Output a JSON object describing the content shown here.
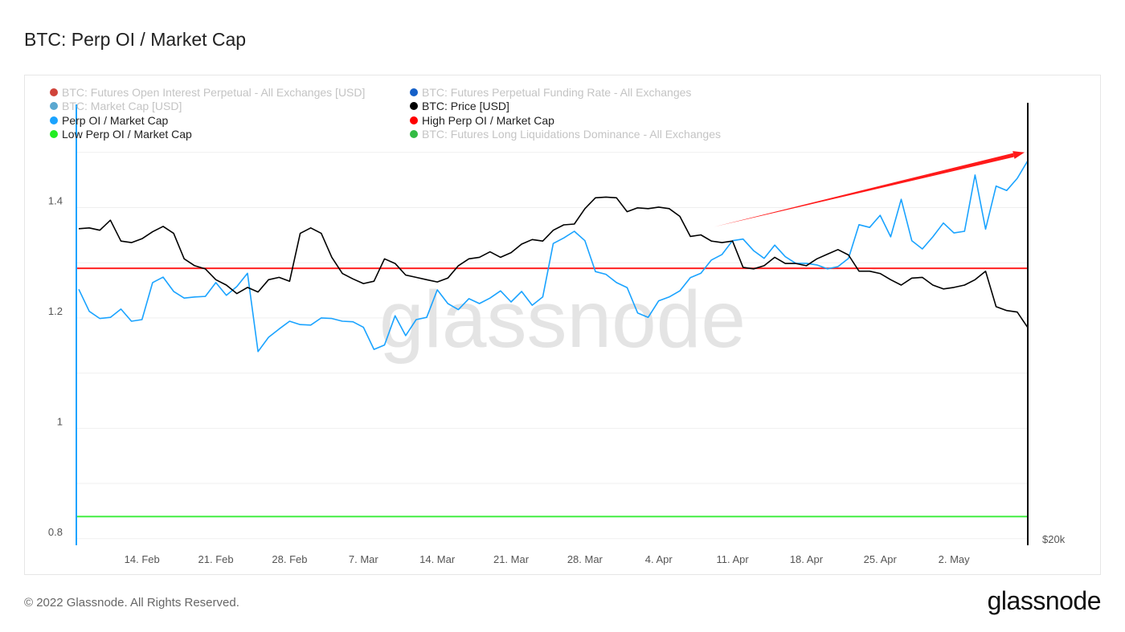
{
  "title": "BTC: Perp OI / Market Cap",
  "footer": "© 2022 Glassnode. All Rights Reserved.",
  "logo": "glassnode",
  "watermark": "glassnode",
  "legend": [
    {
      "label": "BTC: Futures Open Interest Perpetual - All Exchanges [USD]",
      "color": "#d0433a",
      "active": false
    },
    {
      "label": "BTC: Futures Perpetual Funding Rate - All Exchanges",
      "color": "#1560c8",
      "active": false
    },
    {
      "label": "BTC: Market Cap [USD]",
      "color": "#5aa8d0",
      "active": false
    },
    {
      "label": "BTC: Price [USD]",
      "color": "#000000",
      "active": true
    },
    {
      "label": "Perp OI / Market Cap",
      "color": "#1aa3ff",
      "active": true
    },
    {
      "label": "High Perp OI / Market Cap",
      "color": "#ff0000",
      "active": true
    },
    {
      "label": "Low Perp OI / Market Cap",
      "color": "#22ee22",
      "active": true
    },
    {
      "label": "BTC: Futures Long Liquidations Dominance - All Exchanges",
      "color": "#33bb44",
      "active": false
    }
  ],
  "chart_data": {
    "type": "line",
    "title": "BTC: Perp OI / Market Cap",
    "grid": true,
    "legend_placement": "top-left",
    "y_left": {
      "ylim": [
        0.788,
        1.587
      ],
      "ticks": [
        0.8,
        1,
        1.2,
        1.4
      ],
      "tick_labels": [
        "0.8",
        "1",
        "1.2",
        "1.4"
      ]
    },
    "y_right": {
      "tick_labels": [
        "$20k"
      ],
      "scale": "linear",
      "ylim": [
        2300,
        59400
      ]
    },
    "x_ticks": [
      {
        "date": "2022-02-14",
        "label": "14. Feb"
      },
      {
        "date": "2022-02-21",
        "label": "21. Feb"
      },
      {
        "date": "2022-02-28",
        "label": "28. Feb"
      },
      {
        "date": "2022-03-07",
        "label": "7. Mar"
      },
      {
        "date": "2022-03-14",
        "label": "14. Mar"
      },
      {
        "date": "2022-03-21",
        "label": "21. Mar"
      },
      {
        "date": "2022-03-28",
        "label": "28. Mar"
      },
      {
        "date": "2022-04-04",
        "label": "4. Apr"
      },
      {
        "date": "2022-04-11",
        "label": "11. Apr"
      },
      {
        "date": "2022-04-18",
        "label": "18. Apr"
      },
      {
        "date": "2022-04-25",
        "label": "25. Apr"
      },
      {
        "date": "2022-05-02",
        "label": "2. May"
      }
    ],
    "x": [
      "2022-02-08",
      "2022-02-09",
      "2022-02-10",
      "2022-02-11",
      "2022-02-12",
      "2022-02-13",
      "2022-02-14",
      "2022-02-15",
      "2022-02-16",
      "2022-02-17",
      "2022-02-18",
      "2022-02-19",
      "2022-02-20",
      "2022-02-21",
      "2022-02-22",
      "2022-02-23",
      "2022-02-24",
      "2022-02-25",
      "2022-02-26",
      "2022-02-27",
      "2022-02-28",
      "2022-03-01",
      "2022-03-02",
      "2022-03-03",
      "2022-03-04",
      "2022-03-05",
      "2022-03-06",
      "2022-03-07",
      "2022-03-08",
      "2022-03-09",
      "2022-03-10",
      "2022-03-11",
      "2022-03-12",
      "2022-03-13",
      "2022-03-14",
      "2022-03-15",
      "2022-03-16",
      "2022-03-17",
      "2022-03-18",
      "2022-03-19",
      "2022-03-20",
      "2022-03-21",
      "2022-03-22",
      "2022-03-23",
      "2022-03-24",
      "2022-03-25",
      "2022-03-26",
      "2022-03-27",
      "2022-03-28",
      "2022-03-29",
      "2022-03-30",
      "2022-03-31",
      "2022-04-01",
      "2022-04-02",
      "2022-04-03",
      "2022-04-04",
      "2022-04-05",
      "2022-04-06",
      "2022-04-07",
      "2022-04-08",
      "2022-04-09",
      "2022-04-10",
      "2022-04-11",
      "2022-04-12",
      "2022-04-13",
      "2022-04-14",
      "2022-04-15",
      "2022-04-16",
      "2022-04-17",
      "2022-04-18",
      "2022-04-19",
      "2022-04-20",
      "2022-04-21",
      "2022-04-22",
      "2022-04-23",
      "2022-04-24",
      "2022-04-25",
      "2022-04-26",
      "2022-04-27",
      "2022-04-28",
      "2022-04-29",
      "2022-04-30",
      "2022-05-01",
      "2022-05-02",
      "2022-05-03",
      "2022-05-04",
      "2022-05-05",
      "2022-05-06",
      "2022-05-07",
      "2022-05-08",
      "2022-05-09"
    ],
    "series": [
      {
        "name": "Perp OI / Market Cap",
        "axis": "left",
        "color": "#1aa3ff",
        "values": [
          1.252,
          1.212,
          1.199,
          1.201,
          1.216,
          1.194,
          1.197,
          1.264,
          1.274,
          1.248,
          1.236,
          1.238,
          1.239,
          1.264,
          1.241,
          1.257,
          1.281,
          1.139,
          1.165,
          1.18,
          1.194,
          1.188,
          1.187,
          1.2,
          1.199,
          1.194,
          1.193,
          1.183,
          1.143,
          1.151,
          1.204,
          1.168,
          1.197,
          1.201,
          1.251,
          1.226,
          1.215,
          1.235,
          1.226,
          1.236,
          1.249,
          1.229,
          1.248,
          1.223,
          1.238,
          1.335,
          1.345,
          1.357,
          1.34,
          1.284,
          1.279,
          1.264,
          1.255,
          1.209,
          1.201,
          1.231,
          1.238,
          1.249,
          1.273,
          1.281,
          1.305,
          1.315,
          1.34,
          1.343,
          1.322,
          1.308,
          1.332,
          1.311,
          1.299,
          1.299,
          1.296,
          1.289,
          1.293,
          1.308,
          1.369,
          1.364,
          1.386,
          1.347,
          1.415,
          1.34,
          1.325,
          1.347,
          1.372,
          1.354,
          1.357,
          1.459,
          1.361,
          1.439,
          1.431,
          1.453,
          1.485
        ]
      },
      {
        "name": "BTC: Price [USD]",
        "axis": "right",
        "color": "#000000",
        "values": [
          43300,
          43400,
          43100,
          44400,
          41700,
          41500,
          42000,
          42900,
          43600,
          42700,
          39400,
          38500,
          38100,
          36700,
          36000,
          34900,
          35700,
          35100,
          36700,
          37000,
          36500,
          42700,
          43400,
          42700,
          39600,
          37500,
          36800,
          36200,
          36500,
          39400,
          38800,
          37300,
          37000,
          36700,
          36400,
          36900,
          38500,
          39400,
          39600,
          40300,
          39600,
          40200,
          41300,
          41900,
          41700,
          43100,
          43800,
          43900,
          45900,
          47300,
          47400,
          47300,
          45500,
          46000,
          45900,
          46100,
          45900,
          44900,
          42300,
          42500,
          41700,
          41500,
          41700,
          38300,
          38100,
          38500,
          39600,
          38800,
          38800,
          38500,
          39400,
          40000,
          40600,
          39900,
          37800,
          37800,
          37500,
          36700,
          36000,
          36900,
          37000,
          36000,
          35500,
          35700,
          36000,
          36700,
          37800,
          33200,
          32700,
          32500,
          30500
        ]
      }
    ],
    "thresholds": [
      {
        "name": "High Perp OI / Market Cap",
        "value": 1.29,
        "color": "#ff2020"
      },
      {
        "name": "Low Perp OI / Market Cap",
        "value": 0.84,
        "color": "#44ee44"
      }
    ],
    "annotation": {
      "type": "arrow",
      "color": "#ff1a1a",
      "from": {
        "date": "2022-04-09",
        "value": 1.364
      },
      "to": {
        "date": "2022-05-09",
        "value": 1.5
      }
    }
  }
}
